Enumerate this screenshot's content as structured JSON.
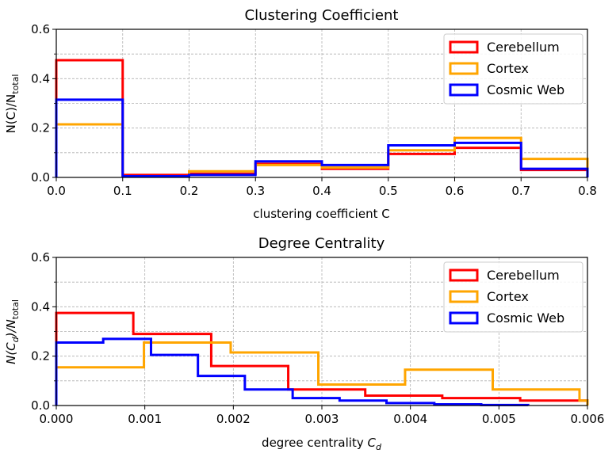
{
  "chart_data": [
    {
      "type": "histogram",
      "title": "Clustering Coefficient",
      "xlabel": "clustering coefficient C",
      "ylabel_main": "N(C)/N",
      "ylabel_sub": "total",
      "xlim": [
        0,
        0.8
      ],
      "ylim": [
        0,
        0.6
      ],
      "xticks": [
        "0.0",
        "0.1",
        "0.2",
        "0.3",
        "0.4",
        "0.5",
        "0.6",
        "0.7",
        "0.8"
      ],
      "xtick_values": [
        0,
        0.1,
        0.2,
        0.3,
        0.4,
        0.5,
        0.6,
        0.7,
        0.8
      ],
      "yticks": [
        "0.0",
        "0.2",
        "0.4",
        "0.6"
      ],
      "ytick_values": [
        0,
        0.2,
        0.4,
        0.6
      ],
      "grid": true,
      "legend_position": "top-right",
      "bin_edges": [
        0,
        0.1,
        0.2,
        0.3,
        0.4,
        0.5,
        0.6,
        0.7,
        0.8
      ],
      "series": [
        {
          "name": "Cerebellum",
          "color": "#ff0000",
          "values": [
            0.475,
            0.01,
            0.015,
            0.055,
            0.035,
            0.095,
            0.12,
            0.03
          ]
        },
        {
          "name": "Cortex",
          "color": "#ffa500",
          "values": [
            0.215,
            0.005,
            0.025,
            0.05,
            0.04,
            0.11,
            0.16,
            0.075
          ]
        },
        {
          "name": "Cosmic Web",
          "color": "#0000ff",
          "values": [
            0.315,
            0.005,
            0.01,
            0.065,
            0.05,
            0.13,
            0.14,
            0.035
          ]
        }
      ]
    },
    {
      "type": "histogram",
      "title": "Degree Centrality",
      "xlabel_main": "degree centrality ",
      "xlabel_var": "C",
      "xlabel_sub": "d",
      "ylabel_open": "N(C",
      "ylabel_sub1": "d",
      "ylabel_mid": ")/N",
      "ylabel_sub2": "total",
      "xlim": [
        0,
        0.006
      ],
      "ylim": [
        0,
        0.6
      ],
      "xticks": [
        "0.000",
        "0.001",
        "0.002",
        "0.003",
        "0.004",
        "0.005",
        "0.006"
      ],
      "xtick_values": [
        0,
        0.001,
        0.002,
        0.003,
        0.004,
        0.005,
        0.006
      ],
      "yticks": [
        "0.0",
        "0.2",
        "0.4",
        "0.6"
      ],
      "ytick_values": [
        0,
        0.2,
        0.4,
        0.6
      ],
      "grid": true,
      "legend_position": "top-right",
      "series": [
        {
          "name": "Cerebellum",
          "color": "#ff0000",
          "edges": [
            0,
            0.00087,
            0.00175,
            0.00262,
            0.00349,
            0.00436,
            0.00524,
            0.006
          ],
          "values": [
            0.375,
            0.29,
            0.16,
            0.065,
            0.04,
            0.03,
            0.02
          ]
        },
        {
          "name": "Cortex",
          "color": "#ffa500",
          "edges": [
            0,
            0.00099,
            0.00197,
            0.00296,
            0.00394,
            0.00493,
            0.00591,
            0.006
          ],
          "values": [
            0.155,
            0.255,
            0.215,
            0.085,
            0.145,
            0.065,
            0.02
          ]
        },
        {
          "name": "Cosmic Web",
          "color": "#0000ff",
          "edges": [
            0,
            0.00053,
            0.00107,
            0.0016,
            0.00213,
            0.00267,
            0.0032,
            0.00373,
            0.00427,
            0.0048,
            0.00533
          ],
          "values": [
            0.255,
            0.27,
            0.205,
            0.12,
            0.065,
            0.03,
            0.02,
            0.01,
            0.005,
            0.002
          ]
        }
      ]
    }
  ]
}
